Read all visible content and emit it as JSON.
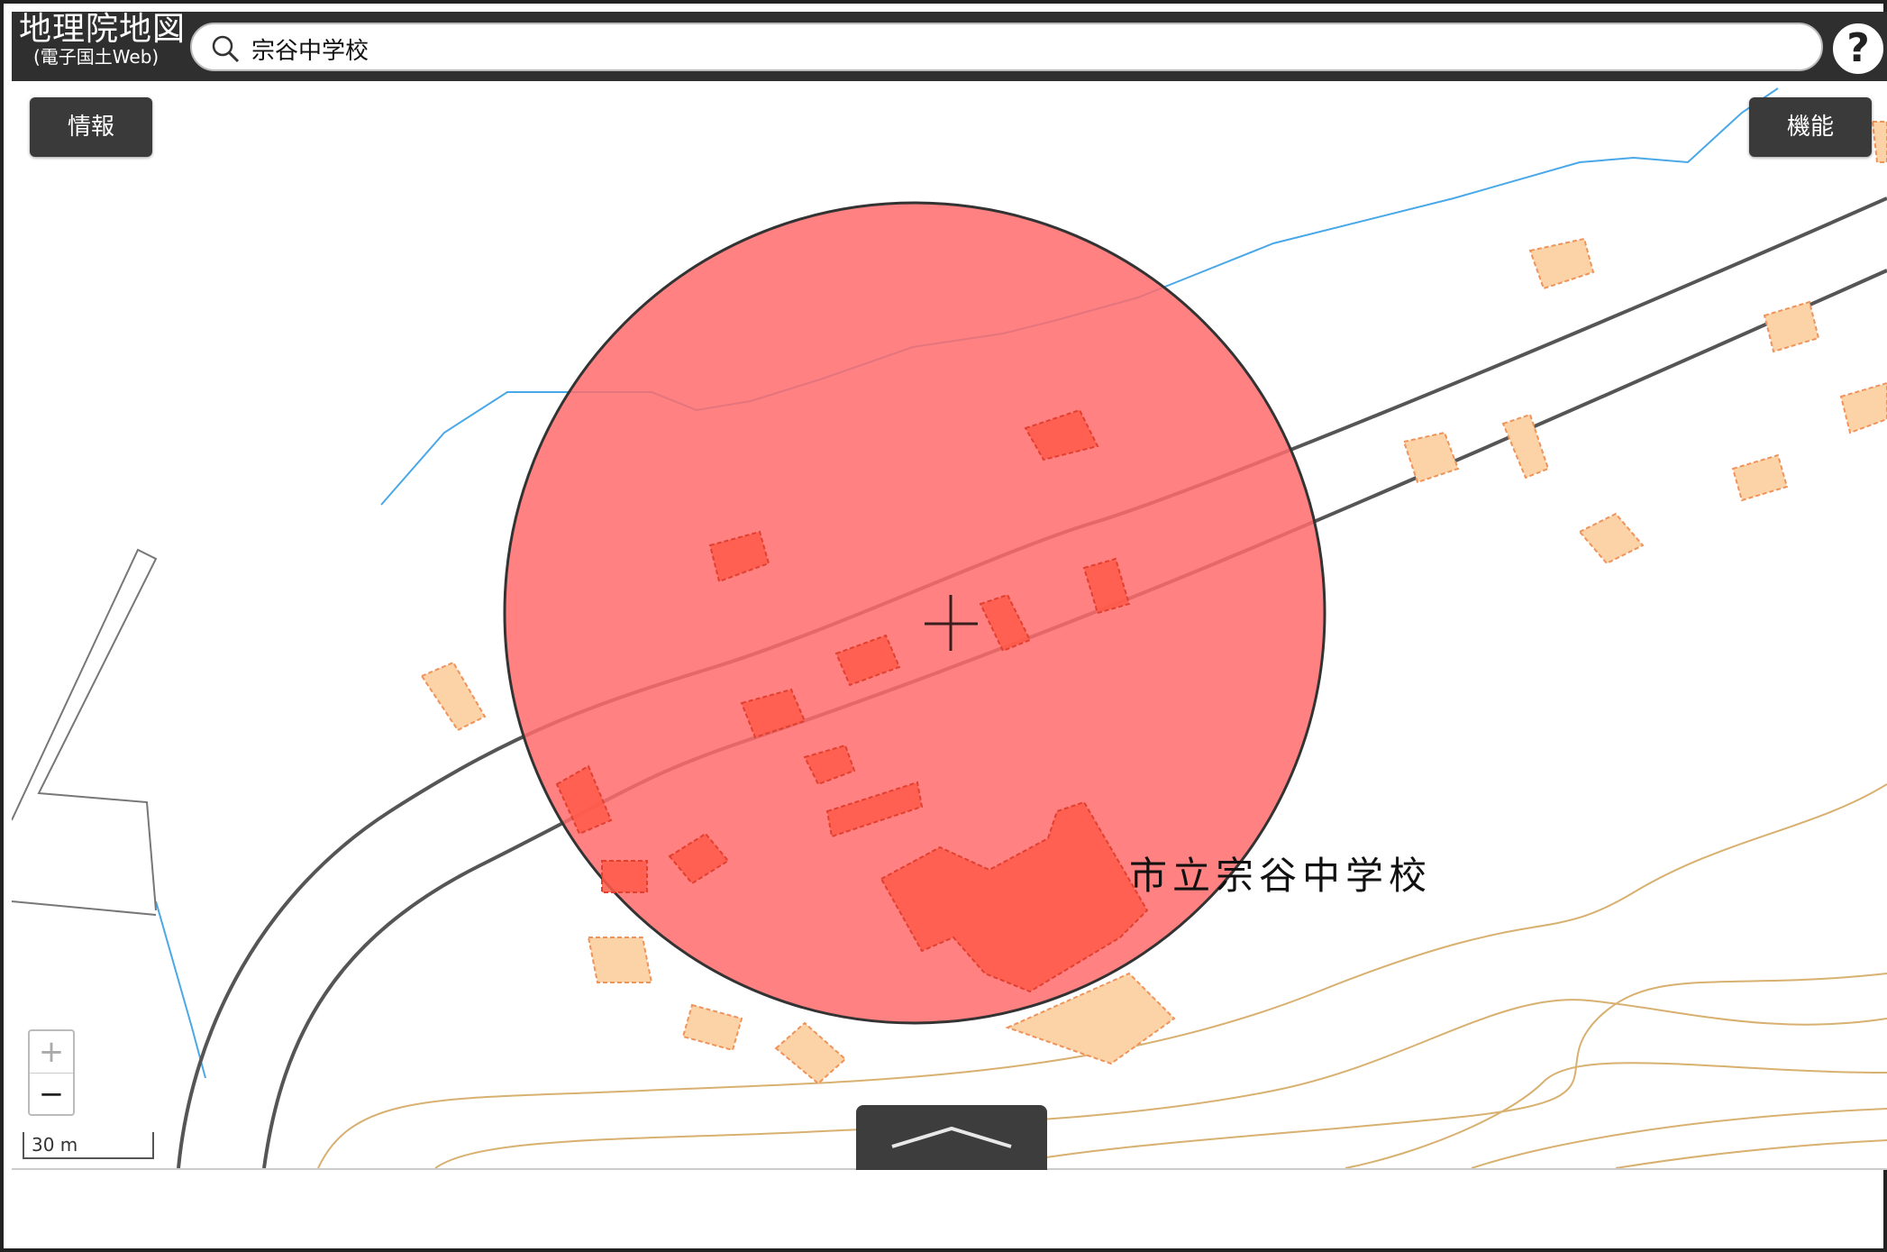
{
  "header": {
    "logo_main": "地理院地図",
    "logo_sub": "(電子国土Web)",
    "search_value": "宗谷中学校",
    "help_label": "?"
  },
  "map": {
    "info_button": "情報",
    "function_button": "機能",
    "place_label": "市立宗谷中学校",
    "zoom_in": "+",
    "zoom_out": "−",
    "scale_label": "30 m"
  },
  "colors": {
    "circle_fill": "#ff6b6b",
    "building_fill": "#fbd3a6",
    "building_stroke": "#f0935a",
    "river": "#4aa8e8",
    "road": "#555555",
    "contour": "#d8b070",
    "bar": "#2f2f2f"
  },
  "icons": {
    "search": "search-icon",
    "help": "help-icon",
    "crosshair": "crosshair-icon",
    "expand": "chevron-up-icon"
  }
}
